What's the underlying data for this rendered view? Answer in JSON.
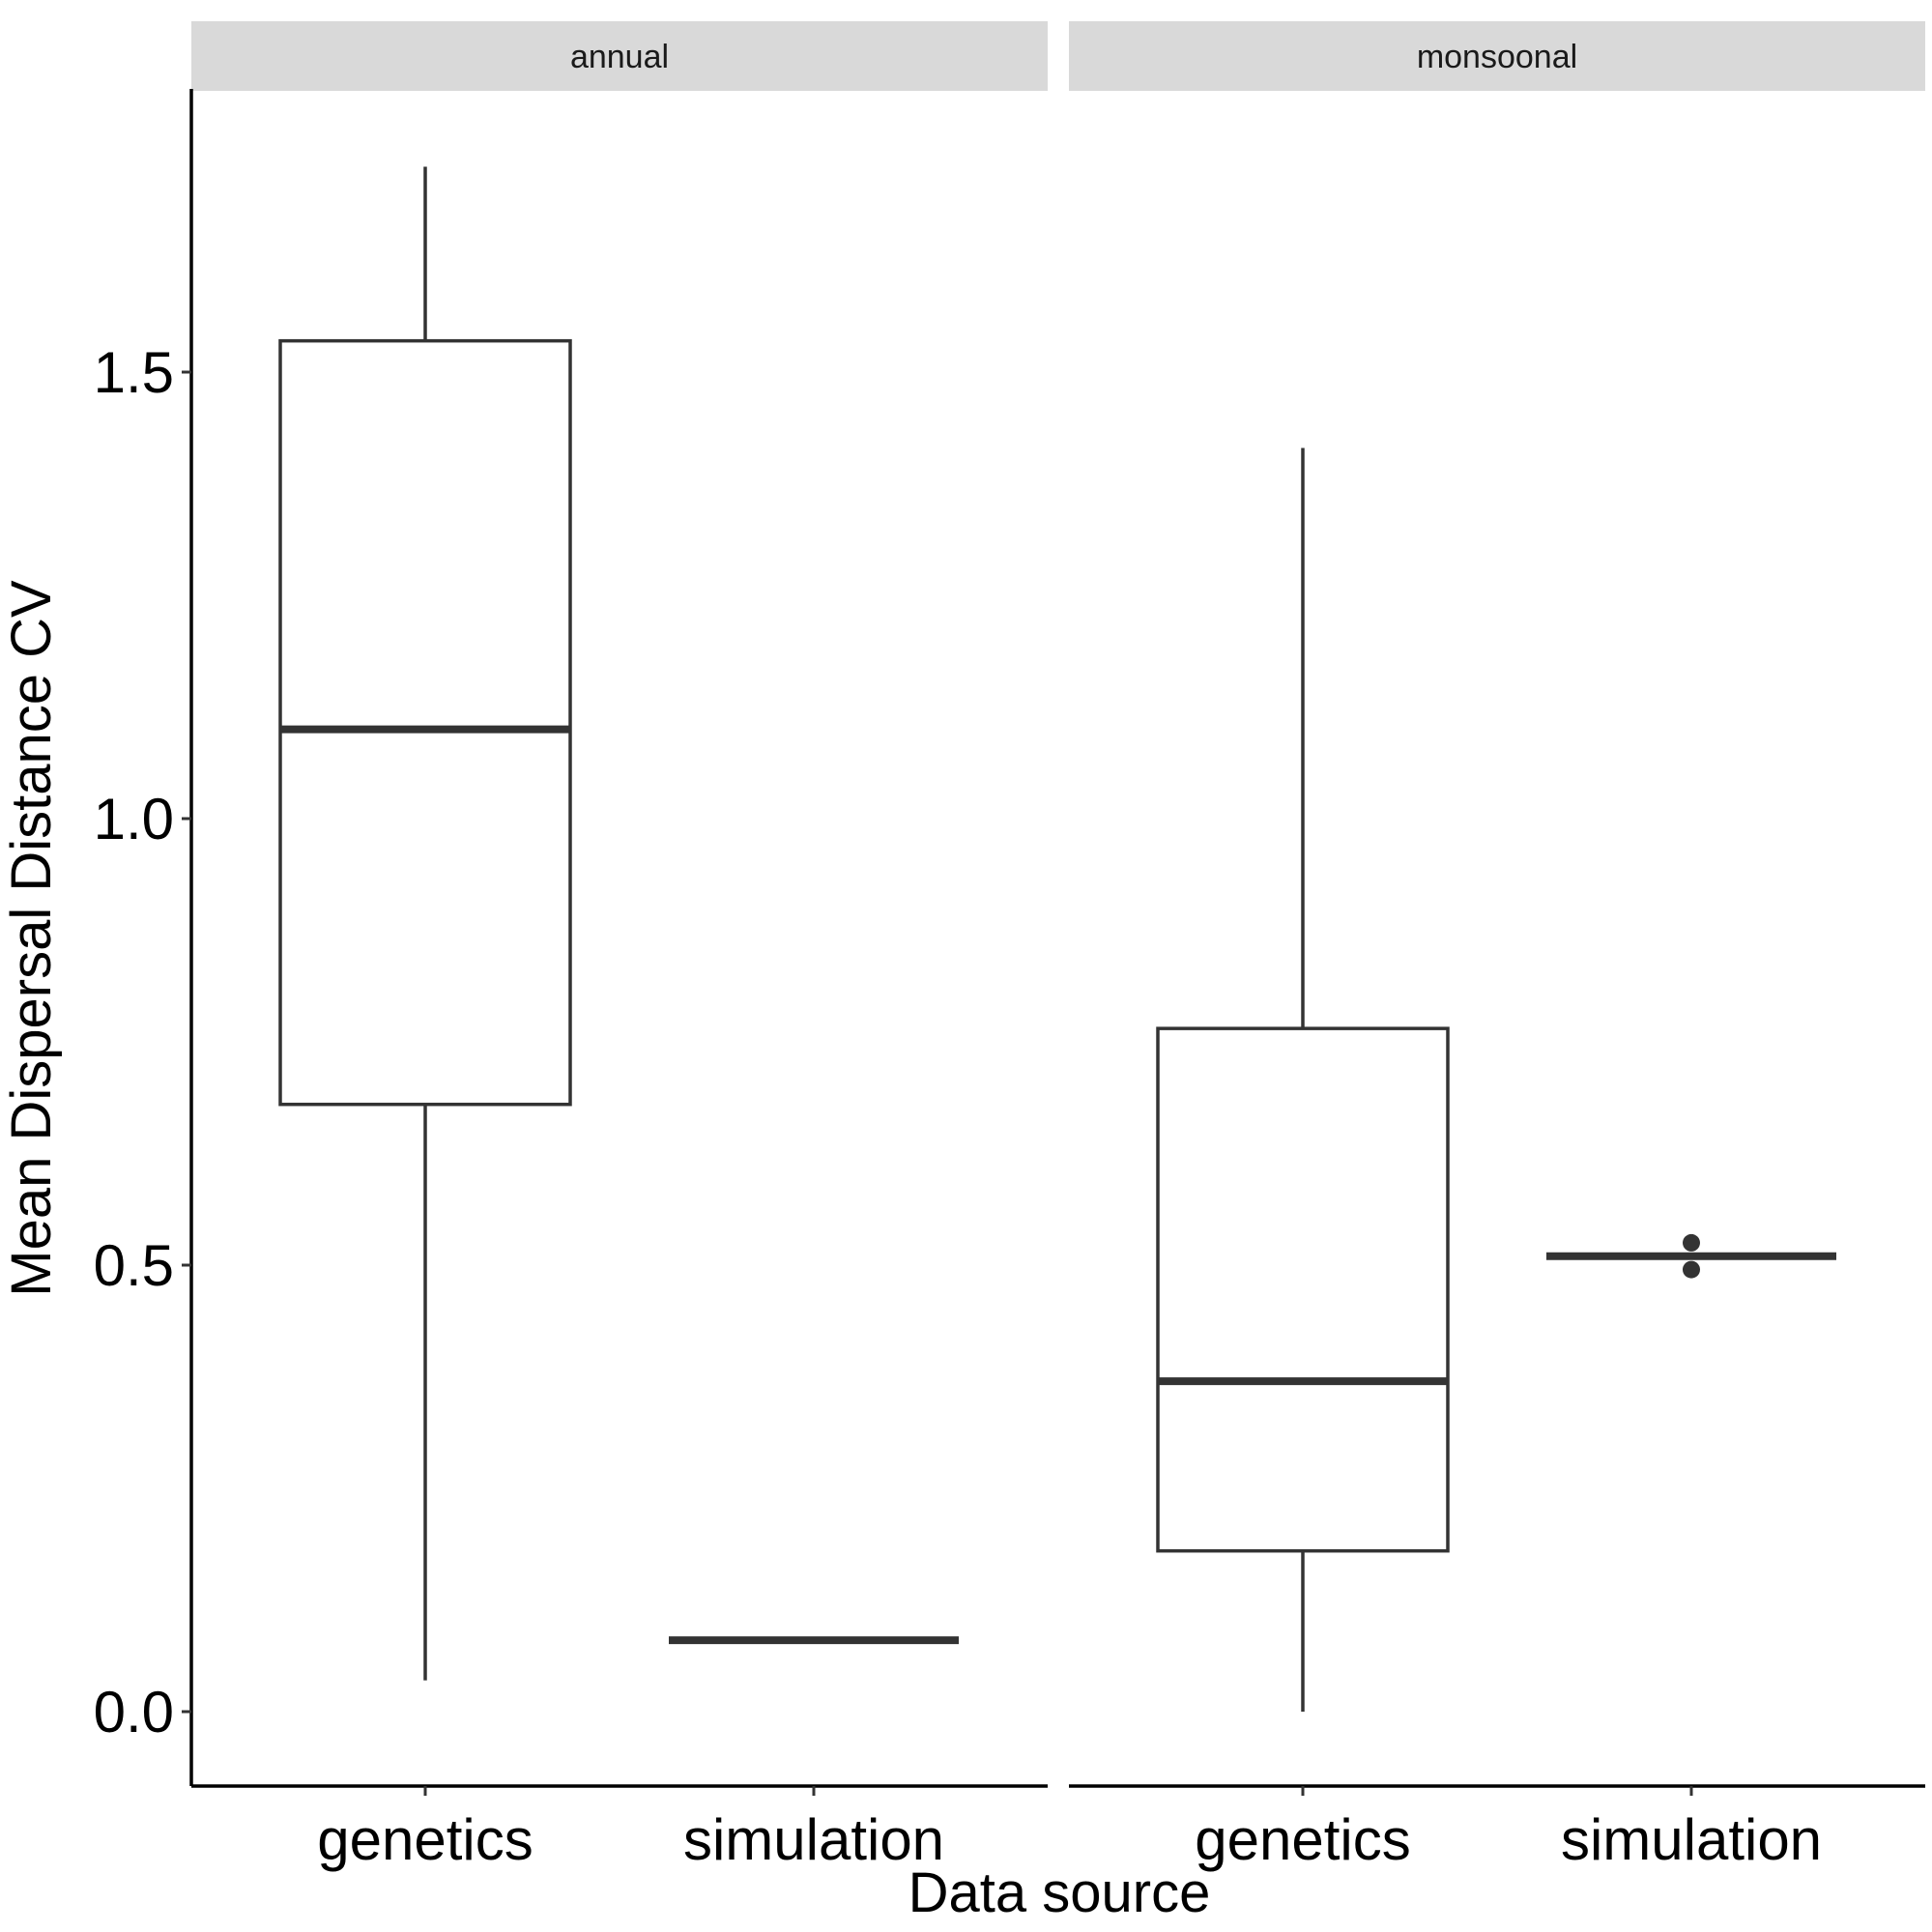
{
  "chart_data": {
    "type": "boxplot",
    "xlabel": "Data source",
    "ylabel": "Mean Dispersal Distance CV",
    "ylim": [
      -0.08,
      1.8
    ],
    "yticks": [
      "0.0",
      "0.5",
      "1.0",
      "1.5"
    ],
    "categories": [
      "genetics",
      "simulation"
    ],
    "grid": false,
    "panels": [
      {
        "name": "annual",
        "boxes": [
          {
            "category": "genetics",
            "whisker_low": 0.035,
            "q1": 0.68,
            "median": 1.1,
            "q3": 1.535,
            "whisker_high": 1.73,
            "outliers": []
          },
          {
            "category": "simulation",
            "whisker_low": 0.08,
            "q1": 0.08,
            "median": 0.08,
            "q3": 0.08,
            "whisker_high": 0.08,
            "outliers": []
          }
        ]
      },
      {
        "name": "monsoonal",
        "boxes": [
          {
            "category": "genetics",
            "whisker_low": 0.0,
            "q1": 0.18,
            "median": 0.37,
            "q3": 0.765,
            "whisker_high": 1.415,
            "outliers": []
          },
          {
            "category": "simulation",
            "whisker_low": 0.51,
            "q1": 0.51,
            "median": 0.51,
            "q3": 0.51,
            "whisker_high": 0.51,
            "outliers": [
              0.525,
              0.495
            ]
          }
        ]
      }
    ],
    "colors": {
      "box_stroke": "#333333",
      "box_fill": "#ffffff",
      "strip_fill": "#d9d9d9",
      "axis": "#000000"
    }
  }
}
